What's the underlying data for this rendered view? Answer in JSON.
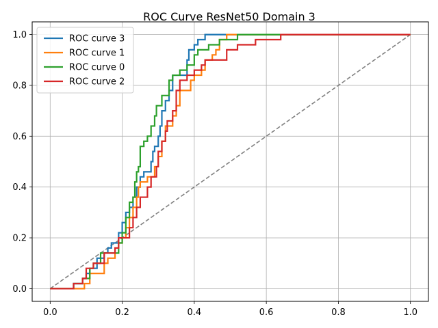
{
  "chart_data": {
    "type": "line",
    "title": "ROC Curve ResNet50 Domain 3",
    "xlabel": "",
    "ylabel": "",
    "xlim": [
      -0.05,
      1.05
    ],
    "ylim": [
      -0.05,
      1.05
    ],
    "x_ticks": [
      0.0,
      0.2,
      0.4,
      0.6,
      0.8,
      1.0
    ],
    "x_tick_labels": [
      "0.0",
      "0.2",
      "0.4",
      "0.6",
      "0.8",
      "1.0"
    ],
    "y_ticks": [
      0.0,
      0.2,
      0.4,
      0.6,
      0.8,
      1.0
    ],
    "y_tick_labels": [
      "0.0",
      "0.2",
      "0.4",
      "0.6",
      "0.8",
      "1.0"
    ],
    "grid": true,
    "legend_position": "upper-left",
    "series": [
      {
        "name": "ROC curve 3",
        "color": "#1f77b4",
        "points": [
          [
            0.0,
            0.0
          ],
          [
            0.065,
            0.0
          ],
          [
            0.065,
            0.02
          ],
          [
            0.09,
            0.02
          ],
          [
            0.09,
            0.04
          ],
          [
            0.1,
            0.04
          ],
          [
            0.1,
            0.06
          ],
          [
            0.11,
            0.06
          ],
          [
            0.11,
            0.08
          ],
          [
            0.13,
            0.08
          ],
          [
            0.13,
            0.12
          ],
          [
            0.15,
            0.12
          ],
          [
            0.15,
            0.14
          ],
          [
            0.16,
            0.14
          ],
          [
            0.16,
            0.16
          ],
          [
            0.17,
            0.16
          ],
          [
            0.17,
            0.18
          ],
          [
            0.19,
            0.18
          ],
          [
            0.19,
            0.22
          ],
          [
            0.2,
            0.22
          ],
          [
            0.2,
            0.26
          ],
          [
            0.21,
            0.26
          ],
          [
            0.21,
            0.3
          ],
          [
            0.22,
            0.3
          ],
          [
            0.22,
            0.32
          ],
          [
            0.23,
            0.32
          ],
          [
            0.23,
            0.36
          ],
          [
            0.24,
            0.36
          ],
          [
            0.24,
            0.4
          ],
          [
            0.25,
            0.4
          ],
          [
            0.25,
            0.44
          ],
          [
            0.26,
            0.44
          ],
          [
            0.26,
            0.46
          ],
          [
            0.28,
            0.46
          ],
          [
            0.28,
            0.5
          ],
          [
            0.285,
            0.5
          ],
          [
            0.285,
            0.54
          ],
          [
            0.29,
            0.54
          ],
          [
            0.29,
            0.56
          ],
          [
            0.3,
            0.56
          ],
          [
            0.3,
            0.6
          ],
          [
            0.305,
            0.6
          ],
          [
            0.305,
            0.64
          ],
          [
            0.31,
            0.64
          ],
          [
            0.31,
            0.7
          ],
          [
            0.32,
            0.7
          ],
          [
            0.32,
            0.74
          ],
          [
            0.33,
            0.74
          ],
          [
            0.33,
            0.78
          ],
          [
            0.34,
            0.78
          ],
          [
            0.34,
            0.84
          ],
          [
            0.38,
            0.84
          ],
          [
            0.38,
            0.9
          ],
          [
            0.385,
            0.9
          ],
          [
            0.385,
            0.94
          ],
          [
            0.4,
            0.94
          ],
          [
            0.4,
            0.96
          ],
          [
            0.41,
            0.96
          ],
          [
            0.41,
            0.98
          ],
          [
            0.43,
            0.98
          ],
          [
            0.43,
            1.0
          ],
          [
            1.0,
            1.0
          ]
        ]
      },
      {
        "name": "ROC curve 1",
        "color": "#ff7f0e",
        "points": [
          [
            0.0,
            0.0
          ],
          [
            0.095,
            0.0
          ],
          [
            0.095,
            0.02
          ],
          [
            0.11,
            0.02
          ],
          [
            0.11,
            0.06
          ],
          [
            0.15,
            0.06
          ],
          [
            0.15,
            0.1
          ],
          [
            0.16,
            0.1
          ],
          [
            0.16,
            0.12
          ],
          [
            0.18,
            0.12
          ],
          [
            0.18,
            0.16
          ],
          [
            0.19,
            0.16
          ],
          [
            0.19,
            0.18
          ],
          [
            0.2,
            0.18
          ],
          [
            0.2,
            0.2
          ],
          [
            0.21,
            0.2
          ],
          [
            0.21,
            0.24
          ],
          [
            0.22,
            0.24
          ],
          [
            0.22,
            0.28
          ],
          [
            0.23,
            0.28
          ],
          [
            0.23,
            0.32
          ],
          [
            0.24,
            0.32
          ],
          [
            0.24,
            0.36
          ],
          [
            0.245,
            0.36
          ],
          [
            0.245,
            0.4
          ],
          [
            0.25,
            0.4
          ],
          [
            0.25,
            0.42
          ],
          [
            0.27,
            0.42
          ],
          [
            0.27,
            0.44
          ],
          [
            0.29,
            0.44
          ],
          [
            0.29,
            0.48
          ],
          [
            0.3,
            0.48
          ],
          [
            0.3,
            0.52
          ],
          [
            0.31,
            0.52
          ],
          [
            0.31,
            0.58
          ],
          [
            0.32,
            0.58
          ],
          [
            0.32,
            0.64
          ],
          [
            0.34,
            0.64
          ],
          [
            0.34,
            0.68
          ],
          [
            0.35,
            0.68
          ],
          [
            0.35,
            0.72
          ],
          [
            0.36,
            0.72
          ],
          [
            0.36,
            0.78
          ],
          [
            0.39,
            0.78
          ],
          [
            0.39,
            0.82
          ],
          [
            0.4,
            0.82
          ],
          [
            0.4,
            0.84
          ],
          [
            0.42,
            0.84
          ],
          [
            0.42,
            0.86
          ],
          [
            0.43,
            0.86
          ],
          [
            0.43,
            0.9
          ],
          [
            0.45,
            0.9
          ],
          [
            0.45,
            0.92
          ],
          [
            0.46,
            0.92
          ],
          [
            0.46,
            0.94
          ],
          [
            0.47,
            0.94
          ],
          [
            0.47,
            0.98
          ],
          [
            0.49,
            0.98
          ],
          [
            0.49,
            1.0
          ],
          [
            1.0,
            1.0
          ]
        ]
      },
      {
        "name": "ROC curve 0",
        "color": "#2ca02c",
        "points": [
          [
            0.0,
            0.0
          ],
          [
            0.065,
            0.0
          ],
          [
            0.065,
            0.02
          ],
          [
            0.09,
            0.02
          ],
          [
            0.09,
            0.04
          ],
          [
            0.11,
            0.04
          ],
          [
            0.11,
            0.08
          ],
          [
            0.12,
            0.08
          ],
          [
            0.12,
            0.1
          ],
          [
            0.14,
            0.1
          ],
          [
            0.14,
            0.14
          ],
          [
            0.19,
            0.14
          ],
          [
            0.19,
            0.18
          ],
          [
            0.2,
            0.18
          ],
          [
            0.2,
            0.22
          ],
          [
            0.21,
            0.22
          ],
          [
            0.21,
            0.28
          ],
          [
            0.22,
            0.28
          ],
          [
            0.22,
            0.34
          ],
          [
            0.23,
            0.34
          ],
          [
            0.23,
            0.36
          ],
          [
            0.235,
            0.36
          ],
          [
            0.235,
            0.42
          ],
          [
            0.24,
            0.42
          ],
          [
            0.24,
            0.46
          ],
          [
            0.245,
            0.46
          ],
          [
            0.245,
            0.48
          ],
          [
            0.25,
            0.48
          ],
          [
            0.25,
            0.56
          ],
          [
            0.26,
            0.56
          ],
          [
            0.26,
            0.58
          ],
          [
            0.27,
            0.58
          ],
          [
            0.27,
            0.6
          ],
          [
            0.28,
            0.6
          ],
          [
            0.28,
            0.64
          ],
          [
            0.29,
            0.64
          ],
          [
            0.29,
            0.68
          ],
          [
            0.295,
            0.68
          ],
          [
            0.295,
            0.72
          ],
          [
            0.31,
            0.72
          ],
          [
            0.31,
            0.76
          ],
          [
            0.33,
            0.76
          ],
          [
            0.33,
            0.82
          ],
          [
            0.34,
            0.82
          ],
          [
            0.34,
            0.84
          ],
          [
            0.36,
            0.84
          ],
          [
            0.36,
            0.86
          ],
          [
            0.38,
            0.86
          ],
          [
            0.38,
            0.88
          ],
          [
            0.4,
            0.88
          ],
          [
            0.4,
            0.92
          ],
          [
            0.41,
            0.92
          ],
          [
            0.41,
            0.94
          ],
          [
            0.44,
            0.94
          ],
          [
            0.44,
            0.96
          ],
          [
            0.47,
            0.96
          ],
          [
            0.47,
            0.98
          ],
          [
            0.52,
            0.98
          ],
          [
            0.52,
            1.0
          ],
          [
            1.0,
            1.0
          ]
        ]
      },
      {
        "name": "ROC curve 2",
        "color": "#d62728",
        "points": [
          [
            0.0,
            0.0
          ],
          [
            0.065,
            0.0
          ],
          [
            0.065,
            0.02
          ],
          [
            0.09,
            0.02
          ],
          [
            0.09,
            0.04
          ],
          [
            0.1,
            0.04
          ],
          [
            0.1,
            0.08
          ],
          [
            0.12,
            0.08
          ],
          [
            0.12,
            0.1
          ],
          [
            0.15,
            0.1
          ],
          [
            0.15,
            0.14
          ],
          [
            0.18,
            0.14
          ],
          [
            0.18,
            0.16
          ],
          [
            0.19,
            0.16
          ],
          [
            0.19,
            0.2
          ],
          [
            0.22,
            0.2
          ],
          [
            0.22,
            0.24
          ],
          [
            0.23,
            0.24
          ],
          [
            0.23,
            0.28
          ],
          [
            0.24,
            0.28
          ],
          [
            0.24,
            0.32
          ],
          [
            0.25,
            0.32
          ],
          [
            0.25,
            0.36
          ],
          [
            0.27,
            0.36
          ],
          [
            0.27,
            0.4
          ],
          [
            0.28,
            0.4
          ],
          [
            0.28,
            0.44
          ],
          [
            0.295,
            0.44
          ],
          [
            0.295,
            0.48
          ],
          [
            0.3,
            0.48
          ],
          [
            0.3,
            0.54
          ],
          [
            0.31,
            0.54
          ],
          [
            0.31,
            0.58
          ],
          [
            0.32,
            0.58
          ],
          [
            0.32,
            0.62
          ],
          [
            0.325,
            0.62
          ],
          [
            0.325,
            0.66
          ],
          [
            0.34,
            0.66
          ],
          [
            0.34,
            0.7
          ],
          [
            0.35,
            0.7
          ],
          [
            0.35,
            0.78
          ],
          [
            0.36,
            0.78
          ],
          [
            0.36,
            0.82
          ],
          [
            0.38,
            0.82
          ],
          [
            0.38,
            0.84
          ],
          [
            0.4,
            0.84
          ],
          [
            0.4,
            0.86
          ],
          [
            0.42,
            0.86
          ],
          [
            0.42,
            0.88
          ],
          [
            0.43,
            0.88
          ],
          [
            0.43,
            0.9
          ],
          [
            0.49,
            0.9
          ],
          [
            0.49,
            0.94
          ],
          [
            0.52,
            0.94
          ],
          [
            0.52,
            0.96
          ],
          [
            0.57,
            0.96
          ],
          [
            0.57,
            0.98
          ],
          [
            0.64,
            0.98
          ],
          [
            0.64,
            1.0
          ],
          [
            1.0,
            1.0
          ]
        ]
      }
    ],
    "reference_line": {
      "color": "#808080",
      "points": [
        [
          0.0,
          0.0
        ],
        [
          1.0,
          1.0
        ]
      ]
    }
  }
}
